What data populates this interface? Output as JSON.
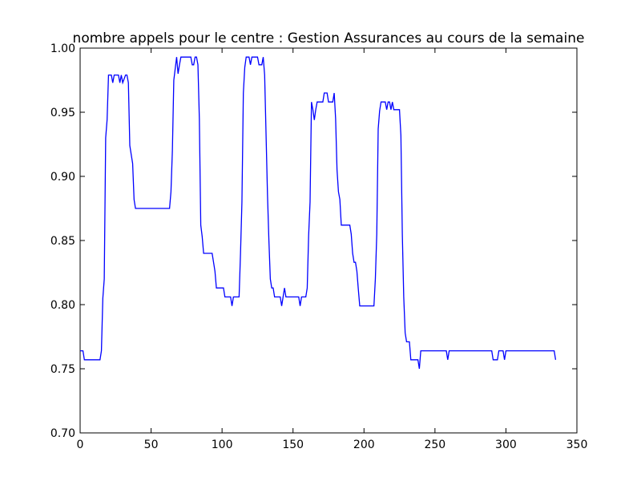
{
  "chart_data": {
    "type": "line",
    "title": "nombre appels pour le centre : Gestion Assurances au cours de la semaine",
    "x": [
      0,
      2,
      3,
      14,
      15,
      16,
      17,
      18,
      19,
      20,
      22,
      23,
      24,
      27,
      28,
      29,
      30,
      32,
      33,
      34,
      35,
      37,
      38,
      39,
      63,
      64,
      65,
      66,
      68,
      69,
      70,
      71,
      78,
      79,
      80,
      81,
      82,
      83,
      84,
      85,
      86,
      87,
      93,
      94,
      95,
      96,
      101,
      102,
      106,
      107,
      108,
      112,
      113,
      114,
      115,
      116,
      117,
      119,
      120,
      121,
      125,
      126,
      128,
      129,
      130,
      132,
      133,
      134,
      135,
      136,
      137,
      141,
      142,
      143,
      144,
      145,
      154,
      155,
      156,
      159,
      160,
      161,
      162,
      163,
      164,
      165,
      166,
      167,
      171,
      172,
      174,
      175,
      178,
      179,
      180,
      181,
      182,
      183,
      184,
      190,
      191,
      192,
      193,
      194,
      195,
      196,
      197,
      207,
      208,
      209,
      210,
      211,
      212,
      215,
      216,
      217,
      218,
      219,
      220,
      221,
      225,
      226,
      227,
      228,
      229,
      230,
      232,
      233,
      238,
      239,
      240,
      258,
      259,
      260,
      290,
      291,
      294,
      295,
      298,
      299,
      300,
      334,
      335
    ],
    "series": [
      {
        "color": "#0000ff",
        "values": [
          0.764,
          0.764,
          0.757,
          0.757,
          0.764,
          0.805,
          0.82,
          0.93,
          0.944,
          0.979,
          0.979,
          0.973,
          0.979,
          0.979,
          0.973,
          0.979,
          0.973,
          0.979,
          0.979,
          0.973,
          0.924,
          0.91,
          0.882,
          0.875,
          0.875,
          0.888,
          0.92,
          0.975,
          0.993,
          0.98,
          0.987,
          0.993,
          0.993,
          0.987,
          0.987,
          0.993,
          0.993,
          0.987,
          0.945,
          0.862,
          0.853,
          0.84,
          0.84,
          0.833,
          0.826,
          0.813,
          0.813,
          0.806,
          0.806,
          0.799,
          0.806,
          0.806,
          0.84,
          0.88,
          0.965,
          0.985,
          0.993,
          0.993,
          0.987,
          0.993,
          0.993,
          0.987,
          0.987,
          0.993,
          0.979,
          0.886,
          0.85,
          0.82,
          0.813,
          0.813,
          0.806,
          0.806,
          0.799,
          0.806,
          0.813,
          0.806,
          0.806,
          0.799,
          0.806,
          0.806,
          0.813,
          0.854,
          0.88,
          0.958,
          0.952,
          0.944,
          0.952,
          0.958,
          0.958,
          0.965,
          0.965,
          0.958,
          0.958,
          0.965,
          0.945,
          0.905,
          0.888,
          0.882,
          0.862,
          0.862,
          0.855,
          0.84,
          0.833,
          0.833,
          0.826,
          0.812,
          0.799,
          0.799,
          0.82,
          0.855,
          0.937,
          0.951,
          0.958,
          0.958,
          0.952,
          0.958,
          0.958,
          0.952,
          0.958,
          0.952,
          0.952,
          0.932,
          0.855,
          0.806,
          0.778,
          0.771,
          0.771,
          0.757,
          0.757,
          0.75,
          0.764,
          0.764,
          0.757,
          0.764,
          0.764,
          0.757,
          0.757,
          0.764,
          0.764,
          0.757,
          0.764,
          0.764,
          0.757
        ]
      }
    ],
    "xlim": [
      0,
      350
    ],
    "xticks": [
      0,
      50,
      100,
      150,
      200,
      250,
      300,
      350
    ],
    "ylim": [
      0.7,
      1.0
    ],
    "yticks": [
      {
        "value": 0.7,
        "label": "0.70"
      },
      {
        "value": 0.75,
        "label": "0.75"
      },
      {
        "value": 0.8,
        "label": "0.80"
      },
      {
        "value": 0.85,
        "label": "0.85"
      },
      {
        "value": 0.9,
        "label": "0.90"
      },
      {
        "value": 0.95,
        "label": "0.95"
      },
      {
        "value": 1.0,
        "label": "1.00"
      }
    ]
  }
}
